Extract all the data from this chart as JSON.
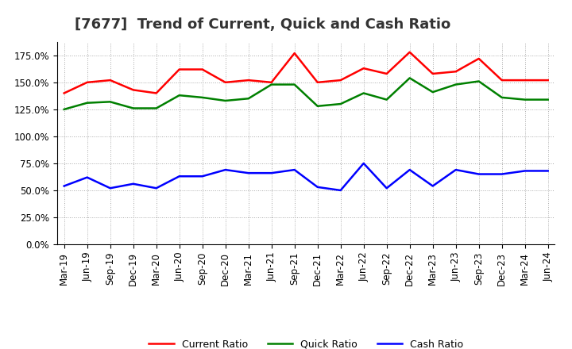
{
  "title": "[7677]  Trend of Current, Quick and Cash Ratio",
  "labels": [
    "Mar-19",
    "Jun-19",
    "Sep-19",
    "Dec-19",
    "Mar-20",
    "Jun-20",
    "Sep-20",
    "Dec-20",
    "Mar-21",
    "Jun-21",
    "Sep-21",
    "Dec-21",
    "Mar-22",
    "Jun-22",
    "Sep-22",
    "Dec-22",
    "Mar-23",
    "Jun-23",
    "Sep-23",
    "Dec-23",
    "Mar-24",
    "Jun-24"
  ],
  "current_ratio": [
    140,
    150,
    152,
    143,
    140,
    162,
    162,
    150,
    152,
    150,
    177,
    150,
    152,
    163,
    158,
    178,
    158,
    160,
    172,
    152,
    152,
    152
  ],
  "quick_ratio": [
    125,
    131,
    132,
    126,
    126,
    138,
    136,
    133,
    135,
    148,
    148,
    128,
    130,
    140,
    134,
    154,
    141,
    148,
    151,
    136,
    134,
    134
  ],
  "cash_ratio": [
    54,
    62,
    52,
    56,
    52,
    63,
    63,
    69,
    66,
    66,
    69,
    53,
    50,
    75,
    52,
    69,
    54,
    69,
    65,
    65,
    68,
    68
  ],
  "current_color": "#ff0000",
  "quick_color": "#008000",
  "cash_color": "#0000ff",
  "ylim": [
    0,
    187.5
  ],
  "yticks": [
    0,
    25,
    50,
    75,
    100,
    125,
    150,
    175
  ],
  "background_color": "#ffffff",
  "plot_bg_color": "#ffffff",
  "grid_color": "#aaaaaa",
  "linewidth": 1.8,
  "title_fontsize": 13,
  "tick_fontsize": 8.5,
  "legend_fontsize": 9
}
